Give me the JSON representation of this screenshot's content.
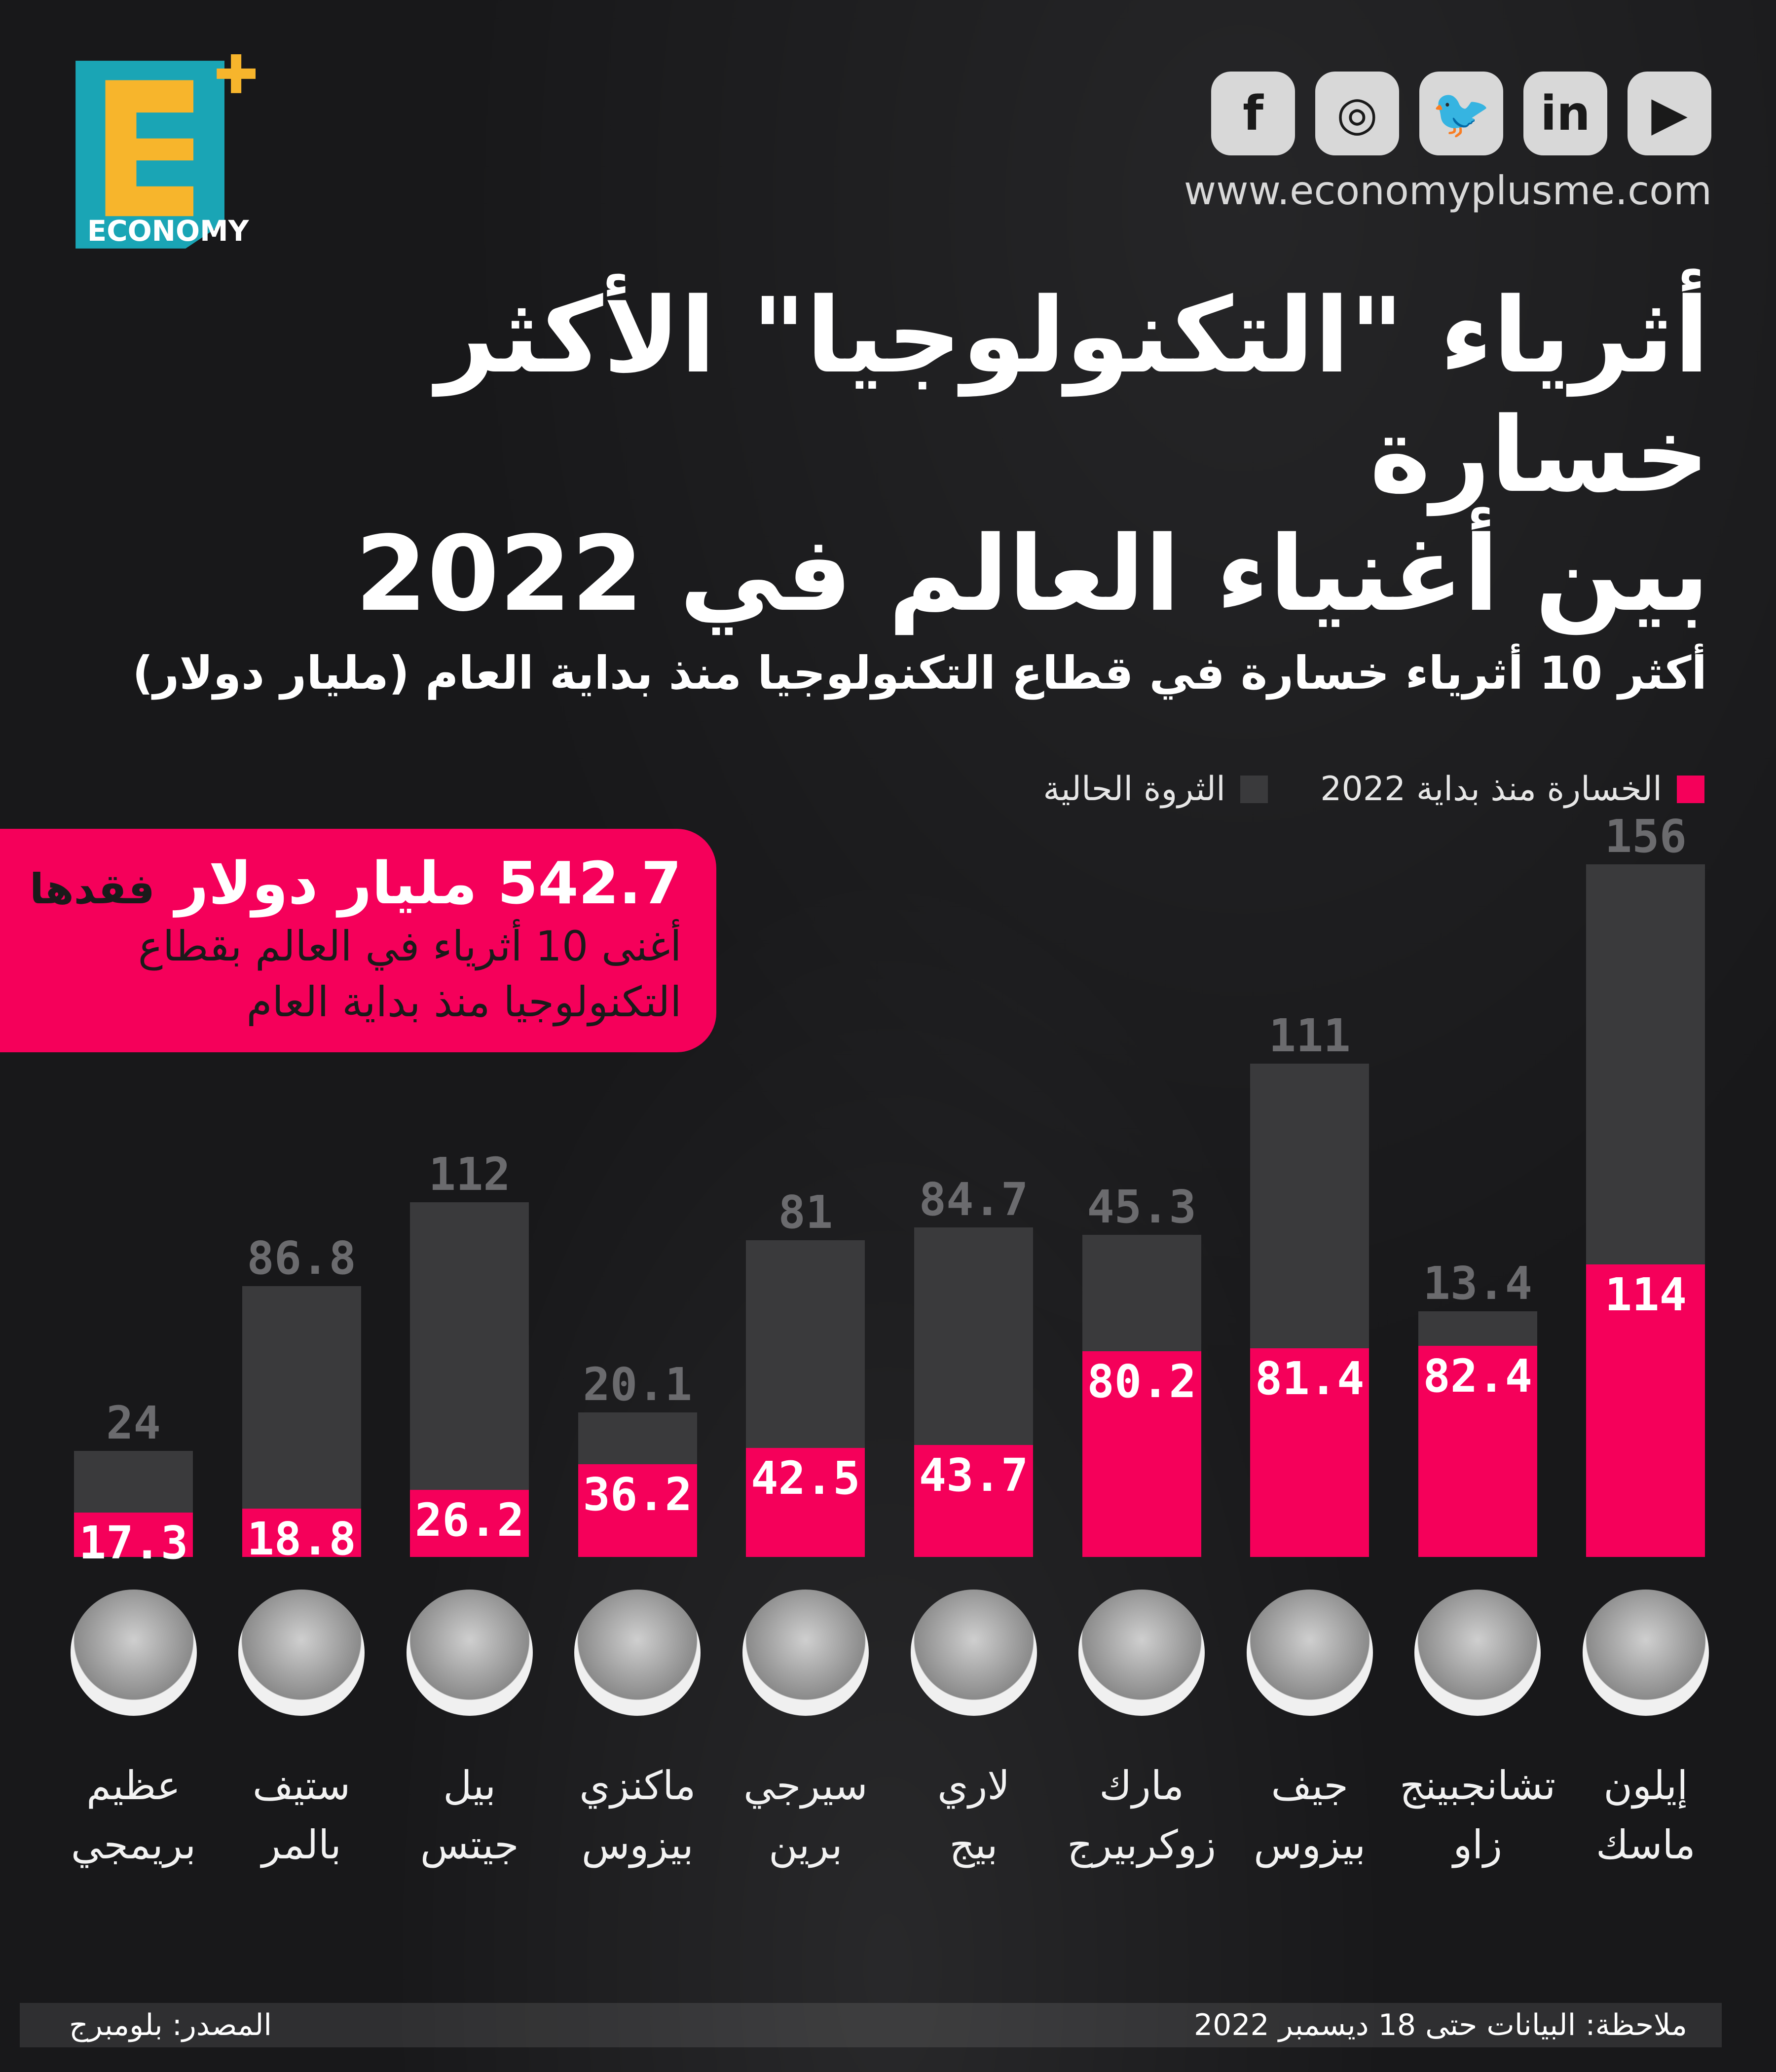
{
  "brand": {
    "logo_text": "ECONOMY",
    "url": "www.economyplusme.com"
  },
  "social": [
    {
      "icon": "facebook-icon",
      "glyph": "f"
    },
    {
      "icon": "instagram-icon",
      "glyph": "◎"
    },
    {
      "icon": "twitter-icon",
      "glyph": "🐦"
    },
    {
      "icon": "linkedin-icon",
      "glyph": "in"
    },
    {
      "icon": "youtube-icon",
      "glyph": "▶"
    }
  ],
  "title_line1": "أثرياء \"التكنولوجيا\" الأكثر خسارة",
  "title_line2": "بين أغنياء العالم في 2022",
  "subtitle": "أكثر 10 أثرياء خسارة في قطاع التكنولوجيا منذ بداية العام (مليار دولار)",
  "callout": {
    "amount": "542.7 مليار دولار",
    "verb": "فقدها",
    "line2": "أغنى 10 أثرياء في العالم بقطاع",
    "line3": "التكنولوجيا منذ بداية العام"
  },
  "footer": {
    "note": "ملاحظة: البيانات حتى 18 ديسمبر 2022",
    "source": "المصدر: بلومبرج"
  },
  "colors": {
    "loss": "#f5005a",
    "wealth": "#3a3a3c",
    "background": "#18181a"
  },
  "chart_data": {
    "type": "bar",
    "stacked": true,
    "title": "أكثر 10 أثرياء خسارة في قطاع التكنولوجيا منذ بداية العام (مليار دولار)",
    "categories": [
      [
        "عظيم",
        "بريمجي"
      ],
      [
        "ستيف",
        "بالمر"
      ],
      [
        "بيل",
        "جيتس"
      ],
      [
        "ماكنزي",
        "بيزوس"
      ],
      [
        "سيرجي",
        "برين"
      ],
      [
        "لاري",
        "بيج"
      ],
      [
        "مارك",
        "زوكربيرج"
      ],
      [
        "جيف",
        "بيزوس"
      ],
      [
        "تشانجبينج",
        "زاو"
      ],
      [
        "إيلون",
        "ماسك"
      ]
    ],
    "series": [
      {
        "name": "الخسارة منذ بداية 2022",
        "color": "#f5005a",
        "values": [
          17.3,
          18.8,
          26.2,
          36.2,
          42.5,
          43.7,
          80.2,
          81.4,
          82.4,
          114
        ]
      },
      {
        "name": "الثروة الحالية",
        "color": "#3a3a3c",
        "values": [
          24,
          86.8,
          112,
          20.1,
          81,
          84.7,
          45.3,
          111,
          13.4,
          156
        ]
      }
    ],
    "ylim": [
      0,
      270
    ],
    "legend_placement": "top-right",
    "grid": false
  }
}
